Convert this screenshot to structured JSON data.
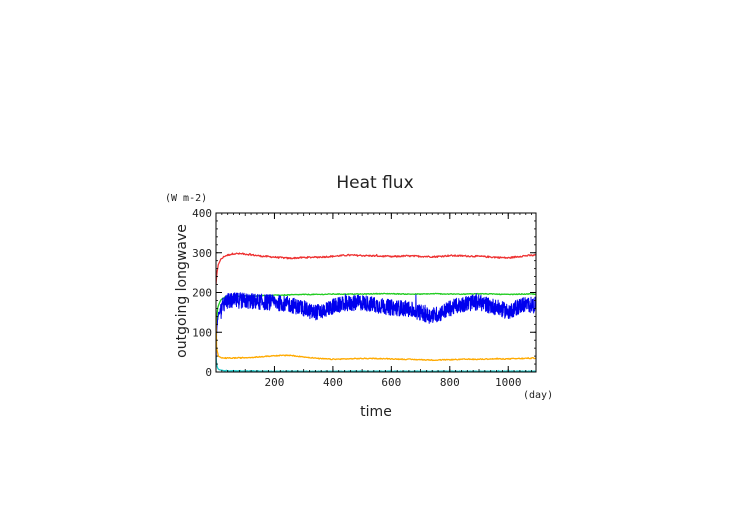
{
  "chart_data": {
    "type": "line",
    "title": "Heat flux",
    "xlabel": "time",
    "ylabel": "outgoing longwave",
    "x_unit": "(day)",
    "y_unit": "(W m-2)",
    "xlim": [
      0,
      1095
    ],
    "ylim": [
      0,
      400
    ],
    "x_ticks": [
      200,
      400,
      600,
      800,
      1000
    ],
    "y_ticks": [
      0,
      100,
      200,
      300,
      400
    ],
    "series": [
      {
        "name": "red",
        "color": "#ee3333",
        "x": [
          0,
          3,
          8,
          15,
          30,
          60,
          100,
          150,
          200,
          250,
          300,
          350,
          400,
          450,
          500,
          550,
          600,
          650,
          700,
          750,
          800,
          850,
          900,
          950,
          1000,
          1050,
          1095
        ],
        "y": [
          220,
          250,
          270,
          282,
          292,
          298,
          297,
          292,
          289,
          286,
          288,
          289,
          291,
          294,
          293,
          292,
          290,
          292,
          291,
          290,
          293,
          292,
          291,
          289,
          287,
          292,
          294
        ],
        "noise": 2
      },
      {
        "name": "green",
        "color": "#22cc22",
        "x": [
          0,
          5,
          15,
          30,
          60,
          100,
          150,
          200,
          250,
          300,
          350,
          400,
          450,
          500,
          550,
          600,
          650,
          700,
          750,
          800,
          850,
          900,
          950,
          1000,
          1050,
          1095
        ],
        "y": [
          100,
          160,
          180,
          188,
          190,
          191,
          192,
          193,
          194,
          195,
          195,
          196,
          196,
          196,
          197,
          197,
          196,
          196,
          197,
          196,
          196,
          197,
          196,
          195,
          196,
          196
        ],
        "noise": 1
      },
      {
        "name": "blue",
        "color": "#0000ee",
        "x": [
          0,
          2,
          8,
          20,
          40,
          80,
          120,
          160,
          200,
          250,
          300,
          330,
          360,
          400,
          450,
          500,
          550,
          600,
          650,
          700,
          730,
          760,
          800,
          850,
          900,
          950,
          1000,
          1050,
          1095
        ],
        "y": [
          10,
          100,
          145,
          165,
          178,
          180,
          178,
          176,
          175,
          170,
          160,
          150,
          152,
          165,
          172,
          175,
          168,
          162,
          160,
          150,
          142,
          145,
          160,
          172,
          175,
          165,
          152,
          170,
          168
        ],
        "noise": 20
      },
      {
        "name": "orange",
        "color": "#ffaa00",
        "x": [
          0,
          2,
          8,
          20,
          50,
          100,
          150,
          200,
          250,
          300,
          350,
          400,
          450,
          500,
          550,
          600,
          650,
          700,
          750,
          800,
          850,
          900,
          950,
          1000,
          1050,
          1095
        ],
        "y": [
          150,
          60,
          40,
          35,
          35,
          36,
          38,
          41,
          42,
          38,
          34,
          32,
          33,
          34,
          34,
          33,
          32,
          31,
          30,
          31,
          32,
          32,
          33,
          33,
          34,
          35
        ],
        "noise": 1.2
      },
      {
        "name": "cyan",
        "color": "#22cccc",
        "x": [
          0,
          2,
          5,
          10,
          20,
          50,
          100,
          200,
          400,
          600,
          800,
          1000,
          1095
        ],
        "y": [
          40,
          20,
          10,
          6,
          4,
          3,
          3,
          2,
          2,
          2,
          2,
          2,
          2
        ],
        "noise": 0.8
      }
    ]
  }
}
